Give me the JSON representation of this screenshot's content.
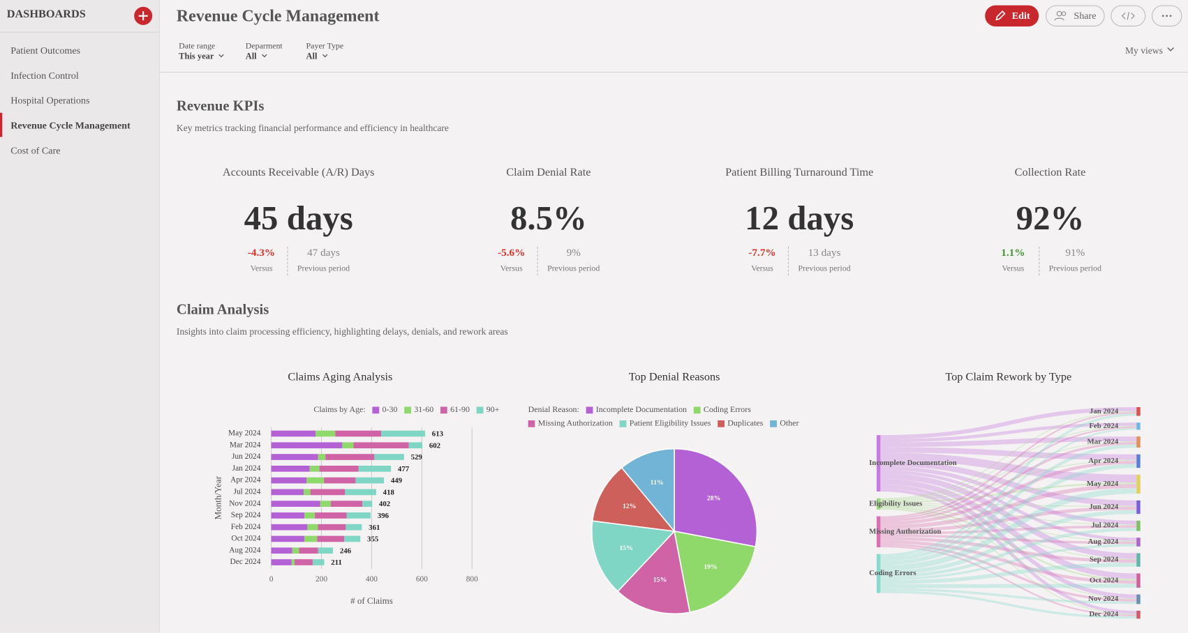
{
  "sidebar": {
    "title": "DASHBOARDS",
    "items": [
      "Patient Outcomes",
      "Infection Control",
      "Hospital Operations",
      "Revenue Cycle Management",
      "Cost of Care"
    ],
    "active": 3
  },
  "header": {
    "title": "Revenue Cycle Management",
    "buttons": [
      "Edit",
      "Share"
    ],
    "views": "My views",
    "filters": [
      {
        "label": "Date range",
        "value": "This year"
      },
      {
        "label": "Deparment",
        "value": "All"
      },
      {
        "label": "Payer Type",
        "value": "All"
      }
    ]
  },
  "sections": [
    {
      "title": "Revenue KPIs",
      "description": "Key metrics tracking financial performance and efficiency in healthcare"
    },
    {
      "title": "Claim Analysis",
      "description": "Insights into claim processing efficiency, highlighting delays, denials, and rework areas"
    }
  ],
  "kpis": [
    {
      "title": "Accounts Receivable (A/R) Days",
      "value": "45 days",
      "change": "-4.3%",
      "change_label": "Versus",
      "change_color": "#d93025",
      "previous": "47 days",
      "previous_label": "Previous period"
    },
    {
      "title": "Claim Denial Rate",
      "value": "8.5%",
      "change": "-5.6%",
      "change_label": "Versus",
      "change_color": "#d93025",
      "previous": "9%",
      "previous_label": "Previous period"
    },
    {
      "title": "Patient Billing Turnaround Time",
      "value": "12 days",
      "change": "-7.7%",
      "change_label": "Versus",
      "change_color": "#d93025",
      "previous": "13 days",
      "previous_label": "Previous period"
    },
    {
      "title": "Collection Rate",
      "value": "92%",
      "change": "1.1%",
      "change_label": "Versus",
      "change_color": "#3a9a2a",
      "previous": "91%",
      "previous_label": "Previous period"
    }
  ],
  "charts": [
    {
      "type": "bar",
      "orientation": "horizontal",
      "stacked": true,
      "title": "Claims Aging Analysis",
      "legend_title": "Claims by Age:",
      "categories": [
        "May 2024",
        "Mar 2024",
        "Jun 2024",
        "Jan 2024",
        "Apr 2024",
        "Jul 2024",
        "Nov 2024",
        "Sep 2024",
        "Feb 2024",
        "Oct 2024",
        "Aug 2024",
        "Dec 2024"
      ],
      "series": [
        {
          "name": "0-30",
          "color": "#b561d6",
          "values": [
            177,
            283,
            186,
            153,
            141,
            129,
            195,
            132,
            144,
            132,
            84,
            81
          ]
        },
        {
          "name": "31-60",
          "color": "#8fd96a",
          "values": [
            78,
            45,
            30,
            39,
            69,
            27,
            42,
            42,
            42,
            51,
            27,
            12
          ]
        },
        {
          "name": "61-90",
          "color": "#d063a5",
          "values": [
            183,
            220,
            195,
            156,
            126,
            138,
            126,
            126,
            111,
            108,
            75,
            72
          ]
        },
        {
          "name": "90+",
          "color": "#7fd6c4",
          "values": [
            175,
            54,
            118,
            129,
            113,
            124,
            39,
            96,
            64,
            64,
            60,
            46
          ]
        }
      ],
      "totals": [
        613,
        602,
        529,
        477,
        449,
        418,
        402,
        396,
        361,
        355,
        246,
        211
      ],
      "xlim": [
        0,
        800
      ],
      "xticks": [
        0,
        200,
        400,
        600,
        800
      ],
      "xlabel": "# of Claims",
      "ylabel": "Month/Year",
      "grid": true
    },
    {
      "type": "pie",
      "title": "Top Denial Reasons",
      "legend_title": "Denial Reason:",
      "categories": [
        "Incomplete Documentation",
        "Coding Errors",
        "Missing Authorization",
        "Patient Eligibility Issues",
        "Duplicates",
        "Other"
      ],
      "values": [
        28,
        19,
        15,
        15,
        12,
        11
      ],
      "value_labels": [
        "28%",
        "19%",
        "15%",
        "15%",
        "12%",
        "11%"
      ],
      "colors": [
        "#b561d6",
        "#8fd96a",
        "#d063a5",
        "#7fd6c4",
        "#cd605a",
        "#72b4d6"
      ]
    },
    {
      "type": "sankey",
      "title": "Top Claim Rework by Type",
      "sources": [
        "Incomplete Documentation",
        "Eligibility Issues",
        "Missing Authorization",
        "Coding Errors"
      ],
      "source_colors": [
        "#c77ae0",
        "#9ad97a",
        "#d872b2",
        "#86dccb"
      ],
      "targets": [
        "Jan 2024",
        "Feb 2024",
        "Mar 2024",
        "Apr 2024",
        "May 2024",
        "Jun 2024",
        "Jul 2024",
        "Aug 2024",
        "Sep 2024",
        "Oct 2024",
        "Nov 2024",
        "Dec 2024"
      ],
      "target_colors": [
        "#d9534f",
        "#6bb8e0",
        "#e0925a",
        "#5b7fd6",
        "#e0d060",
        "#7a5fd6",
        "#7fbf6a",
        "#a965c9",
        "#5fb8a8",
        "#d0609a",
        "#6a8fb0",
        "#d05a6a"
      ],
      "flows": [
        [
          5,
          4,
          6,
          7,
          10,
          7,
          5,
          4,
          7,
          7,
          5,
          4
        ],
        [
          1,
          1,
          1,
          1,
          2,
          1,
          1,
          1,
          1,
          2,
          1,
          1
        ],
        [
          2,
          2,
          3,
          4,
          5,
          4,
          3,
          3,
          4,
          4,
          3,
          2
        ],
        [
          3,
          2,
          4,
          5,
          7,
          5,
          4,
          3,
          5,
          5,
          3,
          3
        ]
      ]
    }
  ]
}
